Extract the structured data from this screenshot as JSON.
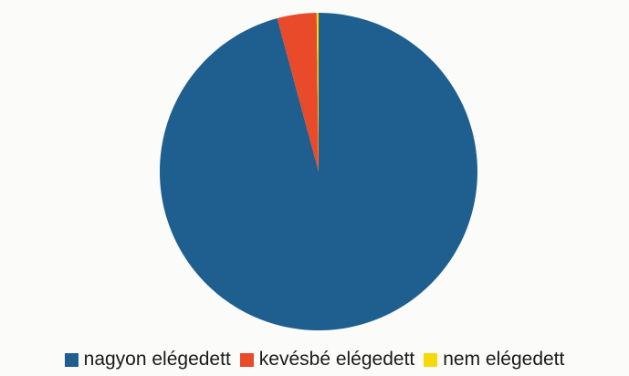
{
  "chart_data": {
    "type": "pie",
    "title": "",
    "categories": [
      "nagyon elégedett",
      "kevésbé elégedett",
      "nem elégedett"
    ],
    "values": [
      95.8,
      4.0,
      0.2
    ],
    "unit": "%",
    "colors": [
      "#1e5f8f",
      "#e84a2a",
      "#f5d90a"
    ],
    "start_angle_deg": 0,
    "direction": "clockwise",
    "legend_placement": "bottom"
  },
  "legend": {
    "items": [
      {
        "label": "nagyon elégedett",
        "color": "#1e5f8f"
      },
      {
        "label": "kevésbé elégedett",
        "color": "#e84a2a"
      },
      {
        "label": "nem elégedett",
        "color": "#f5d90a"
      }
    ]
  }
}
